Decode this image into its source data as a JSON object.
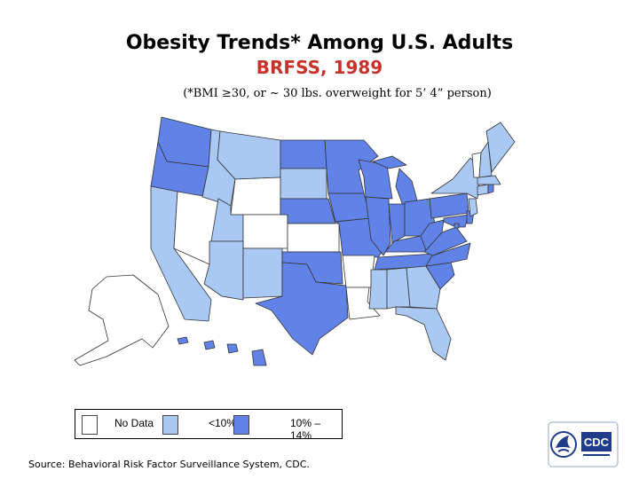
{
  "title": "Obesity Trends* Among U.S. Adults",
  "subtitle": "BRFSS, 1989",
  "note": "(*BMI ≥30, or ~ 30 lbs. overweight for 5’ 4” person)",
  "colors": {
    "no_data": "#ffffff",
    "under_10": "#a9c8f3",
    "ten_to_14": "#6183e8",
    "title": "#000000",
    "subtitle": "#c8322a"
  },
  "legend": {
    "items": [
      {
        "label": "No Data",
        "color": "#ffffff"
      },
      {
        "label": "<10%",
        "color": "#a9c8f3"
      },
      {
        "label": "10% –14%",
        "color": "#6183e8"
      }
    ]
  },
  "states": {
    "WA": "10-14",
    "OR": "10-14",
    "ID": "<10",
    "MT": "<10",
    "WY": "no data",
    "CA": "<10",
    "NV": "no data",
    "UT": "<10",
    "CO": "no data",
    "AZ": "<10",
    "NM": "<10",
    "ND": "10-14",
    "SD": "<10",
    "NE": "10-14",
    "KS": "no data",
    "OK": "10-14",
    "TX": "10-14",
    "MN": "10-14",
    "IA": "10-14",
    "MO": "10-14",
    "AR": "no data",
    "LA": "no data",
    "WI": "10-14",
    "IL": "10-14",
    "MI": "10-14",
    "IN": "10-14",
    "OH": "10-14",
    "KY": "10-14",
    "TN": "10-14",
    "MS": "<10",
    "AL": "<10",
    "GA": "<10",
    "FL": "<10",
    "SC": "10-14",
    "NC": "10-14",
    "VA": "10-14",
    "WV": "10-14",
    "PA": "10-14",
    "NY": "<10",
    "ME": "<10",
    "VT": "no data",
    "NH": "<10",
    "MA": "<10",
    "RI": "10-14",
    "CT": "<10",
    "NJ": "<10",
    "DE": "10-14",
    "MD": "10-14",
    "DC": "10-14",
    "AK": "no data",
    "HI": "10-14"
  },
  "source": "Source: Behavioral Risk Factor Surveillance System, CDC.",
  "logo": {
    "text": "CDC",
    "icon": "hhs-eagle-icon"
  }
}
